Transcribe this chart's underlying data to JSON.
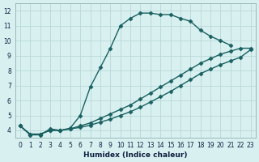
{
  "xlabel": "Humidex (Indice chaleur)",
  "bg_color": "#d8f0f0",
  "grid_color": "#b8d8d8",
  "line_color": "#1a6060",
  "xlim": [
    -0.5,
    23.5
  ],
  "ylim": [
    3.5,
    12.5
  ],
  "xticks": [
    0,
    1,
    2,
    3,
    4,
    5,
    6,
    7,
    8,
    9,
    10,
    11,
    12,
    13,
    14,
    15,
    16,
    17,
    18,
    19,
    20,
    21,
    22,
    23
  ],
  "yticks": [
    4,
    5,
    6,
    7,
    8,
    9,
    10,
    11,
    12
  ],
  "curve1_x": [
    0,
    1,
    2,
    3,
    4,
    5,
    6,
    7,
    8,
    9,
    10,
    11,
    12,
    13,
    14,
    15,
    16,
    17,
    18,
    19,
    20,
    21
  ],
  "curve1_y": [
    4.3,
    3.7,
    3.7,
    4.1,
    4.0,
    4.15,
    5.0,
    6.9,
    8.2,
    9.5,
    11.0,
    11.5,
    11.85,
    11.85,
    11.75,
    11.75,
    11.5,
    11.3,
    10.7,
    10.3,
    10.0,
    9.7
  ],
  "curve2_x": [
    0,
    1,
    2,
    3,
    4,
    5,
    6,
    7,
    8,
    9,
    10,
    11,
    12,
    13,
    14,
    15,
    16,
    17,
    18,
    19,
    20,
    21,
    22,
    23
  ],
  "curve2_y": [
    4.3,
    3.75,
    3.75,
    4.0,
    4.0,
    4.1,
    4.3,
    4.5,
    4.8,
    5.1,
    5.4,
    5.7,
    6.1,
    6.5,
    6.9,
    7.3,
    7.7,
    8.1,
    8.5,
    8.8,
    9.1,
    9.3,
    9.5,
    9.5
  ],
  "curve3_x": [
    0,
    1,
    2,
    3,
    4,
    5,
    6,
    7,
    8,
    9,
    10,
    11,
    12,
    13,
    14,
    15,
    16,
    17,
    18,
    19,
    20,
    21,
    22,
    23
  ],
  "curve3_y": [
    4.3,
    3.75,
    3.75,
    4.0,
    4.0,
    4.1,
    4.2,
    4.35,
    4.55,
    4.75,
    5.0,
    5.25,
    5.55,
    5.9,
    6.25,
    6.6,
    7.0,
    7.4,
    7.8,
    8.1,
    8.4,
    8.65,
    8.9,
    9.4
  ],
  "marker": "D",
  "markersize": 2.5,
  "linewidth": 1.0
}
